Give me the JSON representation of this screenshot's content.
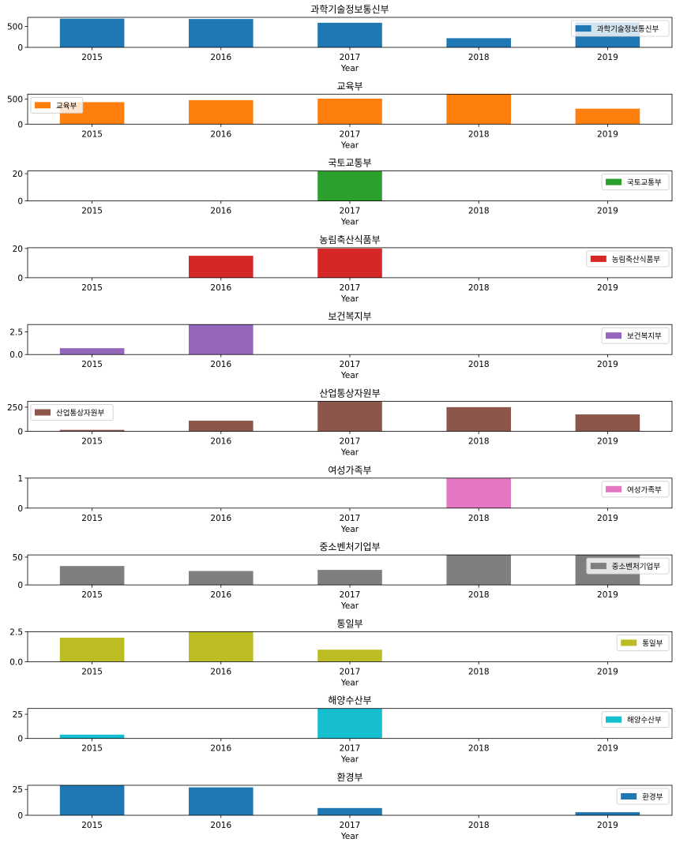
{
  "chart_data": [
    {
      "type": "bar",
      "title": "과학기술정보통신부",
      "xlabel": "Year",
      "ylabel": "",
      "categories": [
        "2015",
        "2016",
        "2017",
        "2018",
        "2019"
      ],
      "series": [
        {
          "name": "과학기술정보통신부",
          "values": [
            690,
            680,
            590,
            220,
            600
          ]
        }
      ],
      "color": "#1f77b4",
      "ylim": [
        0,
        720
      ],
      "yticks": [
        0,
        500
      ],
      "ytick_labels": [
        "0",
        "500"
      ],
      "legend": "right"
    },
    {
      "type": "bar",
      "title": "교육부",
      "xlabel": "Year",
      "ylabel": "",
      "categories": [
        "2015",
        "2016",
        "2017",
        "2018",
        "2019"
      ],
      "series": [
        {
          "name": "교육부",
          "values": [
            440,
            480,
            510,
            600,
            310
          ]
        }
      ],
      "color": "#ff7f0e",
      "ylim": [
        0,
        600
      ],
      "yticks": [
        0,
        500
      ],
      "ytick_labels": [
        "0",
        "500"
      ],
      "legend": "left"
    },
    {
      "type": "bar",
      "title": "국토교통부",
      "xlabel": "Year",
      "ylabel": "",
      "categories": [
        "2015",
        "2016",
        "2017",
        "2018",
        "2019"
      ],
      "series": [
        {
          "name": "국토교통부",
          "values": [
            0,
            0,
            22,
            0,
            0
          ]
        }
      ],
      "color": "#2ca02c",
      "ylim": [
        0,
        22
      ],
      "yticks": [
        0,
        20
      ],
      "ytick_labels": [
        "0",
        "20"
      ],
      "legend": "right"
    },
    {
      "type": "bar",
      "title": "농림축산식품부",
      "xlabel": "Year",
      "ylabel": "",
      "categories": [
        "2015",
        "2016",
        "2017",
        "2018",
        "2019"
      ],
      "series": [
        {
          "name": "농림축산식품부",
          "values": [
            0,
            15,
            20,
            0,
            0
          ]
        }
      ],
      "color": "#d62728",
      "ylim": [
        0,
        20.5
      ],
      "yticks": [
        0,
        20
      ],
      "ytick_labels": [
        "0",
        "20"
      ],
      "legend": "right"
    },
    {
      "type": "bar",
      "title": "보건복지부",
      "xlabel": "Year",
      "ylabel": "",
      "categories": [
        "2015",
        "2016",
        "2017",
        "2018",
        "2019"
      ],
      "series": [
        {
          "name": "보건복지부",
          "values": [
            0.7,
            3.3,
            0,
            0,
            0
          ]
        }
      ],
      "color": "#9467bd",
      "ylim": [
        0,
        3.3
      ],
      "yticks": [
        0,
        2.5
      ],
      "ytick_labels": [
        "0.0",
        "2.5"
      ],
      "legend": "right"
    },
    {
      "type": "bar",
      "title": "산업통상자원부",
      "xlabel": "Year",
      "ylabel": "",
      "categories": [
        "2015",
        "2016",
        "2017",
        "2018",
        "2019"
      ],
      "series": [
        {
          "name": "산업통상자원부",
          "values": [
            15,
            110,
            310,
            250,
            175
          ]
        }
      ],
      "color": "#8c564b",
      "ylim": [
        0,
        310
      ],
      "yticks": [
        0,
        250
      ],
      "ytick_labels": [
        "0",
        "250"
      ],
      "legend": "left"
    },
    {
      "type": "bar",
      "title": "여성가족부",
      "xlabel": "Year",
      "ylabel": "",
      "categories": [
        "2015",
        "2016",
        "2017",
        "2018",
        "2019"
      ],
      "series": [
        {
          "name": "여성가족부",
          "values": [
            0,
            0,
            0,
            1,
            0
          ]
        }
      ],
      "color": "#e377c2",
      "ylim": [
        0,
        1
      ],
      "yticks": [
        0,
        1
      ],
      "ytick_labels": [
        "0",
        "1"
      ],
      "legend": "right"
    },
    {
      "type": "bar",
      "title": "중소벤처기업부",
      "xlabel": "Year",
      "ylabel": "",
      "categories": [
        "2015",
        "2016",
        "2017",
        "2018",
        "2019"
      ],
      "series": [
        {
          "name": "중소벤처기업부",
          "values": [
            34,
            25,
            27,
            54,
            54
          ]
        }
      ],
      "color": "#7f7f7f",
      "ylim": [
        0,
        54
      ],
      "yticks": [
        0,
        50
      ],
      "ytick_labels": [
        "0",
        "50"
      ],
      "legend": "right"
    },
    {
      "type": "bar",
      "title": "통일부",
      "xlabel": "Year",
      "ylabel": "",
      "categories": [
        "2015",
        "2016",
        "2017",
        "2018",
        "2019"
      ],
      "series": [
        {
          "name": "통일부",
          "values": [
            2,
            2.5,
            1,
            0,
            0
          ]
        }
      ],
      "color": "#bcbd22",
      "ylim": [
        0,
        2.5
      ],
      "yticks": [
        0,
        2.5
      ],
      "ytick_labels": [
        "0.0",
        "2.5"
      ],
      "legend": "right"
    },
    {
      "type": "bar",
      "title": "해양수산부",
      "xlabel": "Year",
      "ylabel": "",
      "categories": [
        "2015",
        "2016",
        "2017",
        "2018",
        "2019"
      ],
      "series": [
        {
          "name": "해양수산부",
          "values": [
            4,
            0,
            31,
            0,
            0
          ]
        }
      ],
      "color": "#17becf",
      "ylim": [
        0,
        31
      ],
      "yticks": [
        0,
        25
      ],
      "ytick_labels": [
        "0",
        "25"
      ],
      "legend": "right"
    },
    {
      "type": "bar",
      "title": "환경부",
      "xlabel": "Year",
      "ylabel": "",
      "categories": [
        "2015",
        "2016",
        "2017",
        "2018",
        "2019"
      ],
      "series": [
        {
          "name": "환경부",
          "values": [
            29,
            27,
            7,
            0,
            3
          ]
        }
      ],
      "color": "#1f77b4",
      "ylim": [
        0,
        29
      ],
      "yticks": [
        0,
        25
      ],
      "ytick_labels": [
        "0",
        "25"
      ],
      "legend": "right"
    }
  ]
}
